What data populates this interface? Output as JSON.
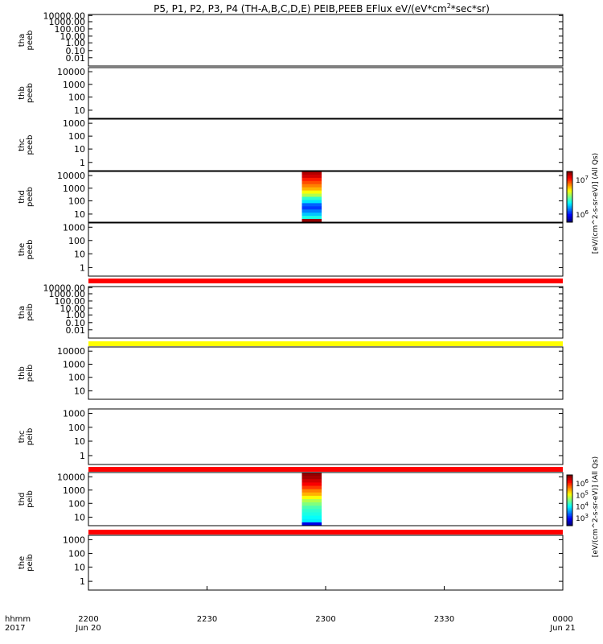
{
  "title": "P5, P1, P2, P3, P4 (TH-A,B,C,D,E) PEIB,PEEB EFlux eV/(eV*cm",
  "title_sup": "2",
  "title_tail": "*sec*sr)",
  "time_label_1": "hhmm",
  "time_label_2": "2017",
  "x_ticks": [
    "2200",
    "2230",
    "2300",
    "2330",
    "0000"
  ],
  "x_dates": [
    "Jun 20",
    "Jun 21"
  ],
  "colorbar_label": "[eV/(cm^2-s-sr-eV)] (All Qs)",
  "colors": {
    "red_bar": "#ff0000",
    "yellow_bar": "#ffff00",
    "axis": "#000000"
  },
  "chart_data": [
    {
      "type": "heatmap",
      "ylabel": "tha peeb",
      "yticks": [
        "10000.00",
        "1000.00",
        "100.00",
        "10.00",
        "1.00",
        "0.10",
        "0.01"
      ],
      "data": "none"
    },
    {
      "type": "heatmap",
      "ylabel": "thb peeb",
      "yticks": [
        "10000",
        "1000",
        "100",
        "10"
      ],
      "data": "none"
    },
    {
      "type": "heatmap",
      "ylabel": "thc peeb",
      "yticks": [
        "1000",
        "100",
        "10",
        "1"
      ],
      "data": "none"
    },
    {
      "type": "heatmap",
      "ylabel": "thd peeb",
      "yticks": [
        "10000",
        "1000",
        "100",
        "10"
      ],
      "data_interval": [
        "2254",
        "2259"
      ],
      "colorbar_ticks": [
        "10^7",
        "10^6"
      ]
    },
    {
      "type": "heatmap",
      "ylabel": "the peeb",
      "yticks": [
        "1000",
        "100",
        "10",
        "1"
      ],
      "data": "none"
    },
    {
      "type": "heatmap",
      "ylabel": "tha peib",
      "yticks": [
        "10000.00",
        "1000.00",
        "100.00",
        "10.00",
        "1.00",
        "0.10",
        "0.01"
      ],
      "data": "none"
    },
    {
      "type": "heatmap",
      "ylabel": "thb peib",
      "yticks": [
        "10000",
        "1000",
        "100",
        "10"
      ],
      "data": "none"
    },
    {
      "type": "heatmap",
      "ylabel": "thc peib",
      "yticks": [
        "1000",
        "100",
        "10",
        "1"
      ],
      "data": "none"
    },
    {
      "type": "heatmap",
      "ylabel": "thd peib",
      "yticks": [
        "10000",
        "1000",
        "100",
        "10"
      ],
      "data_interval": [
        "2254",
        "2259"
      ],
      "colorbar_ticks": [
        "10^6",
        "10^5",
        "10^4",
        "10^3"
      ]
    },
    {
      "type": "heatmap",
      "ylabel": "the peib",
      "yticks": [
        "1000",
        "100",
        "10",
        "1"
      ],
      "data": "none"
    }
  ]
}
